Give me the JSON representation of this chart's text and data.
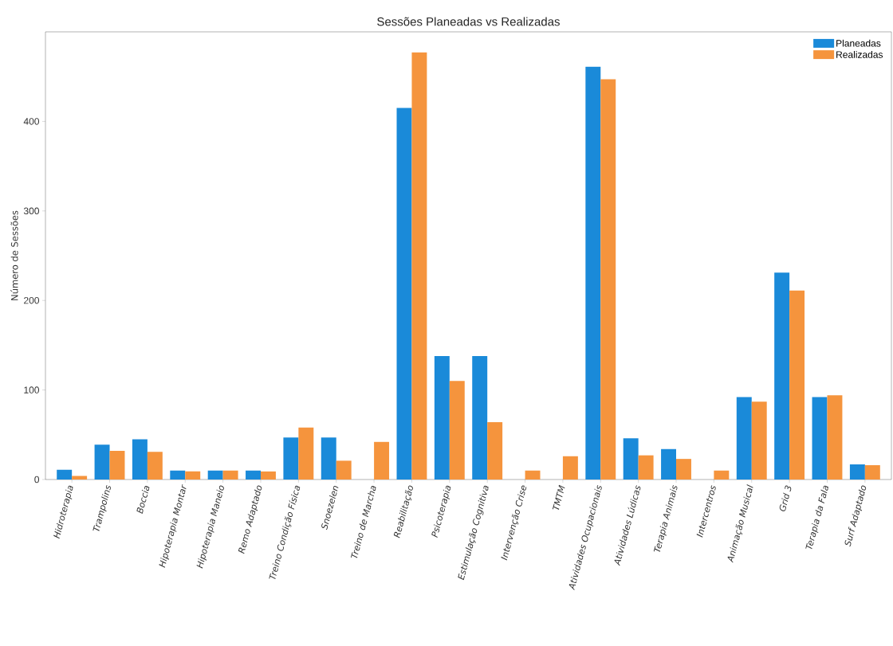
{
  "chart_data": {
    "type": "bar",
    "title": "Sessões Planeadas vs Realizadas",
    "ylabel": "Número de Sessões",
    "categories": [
      "Hidroterapia",
      "Trampolins",
      "Boccia",
      "Hipoterapia Montar",
      "Hipoterapia Maneio",
      "Remo Adaptado",
      "Treino Condição Física",
      "Snoezelen",
      "Treino de Marcha",
      "Reabilitação",
      "Psicoterapia",
      "Estimulação Cognitiva",
      "Intervenção Crise",
      "TMTM",
      "Atividades Ocupacionais",
      "Atividades Lúdicas",
      "Terapia Animais",
      "Intercentros",
      "Animação Musical",
      "Grid 3",
      "Terapia da Fala",
      "Surf Adaptado"
    ],
    "series": [
      {
        "name": "Planeadas",
        "color": "#1a8ad9",
        "values": [
          11,
          39,
          45,
          10,
          10,
          10,
          47,
          47,
          0,
          415,
          138,
          138,
          0,
          0,
          461,
          46,
          34,
          0,
          92,
          231,
          92,
          17
        ]
      },
      {
        "name": "Realizadas",
        "color": "#f5943d",
        "values": [
          4,
          32,
          31,
          9,
          10,
          9,
          58,
          21,
          42,
          477,
          110,
          64,
          10,
          26,
          447,
          27,
          23,
          10,
          87,
          211,
          94,
          16
        ]
      }
    ],
    "ylim": [
      0,
      500
    ],
    "yticks": [
      0,
      100,
      200,
      300,
      400
    ],
    "grid": false,
    "legend": "top right"
  }
}
